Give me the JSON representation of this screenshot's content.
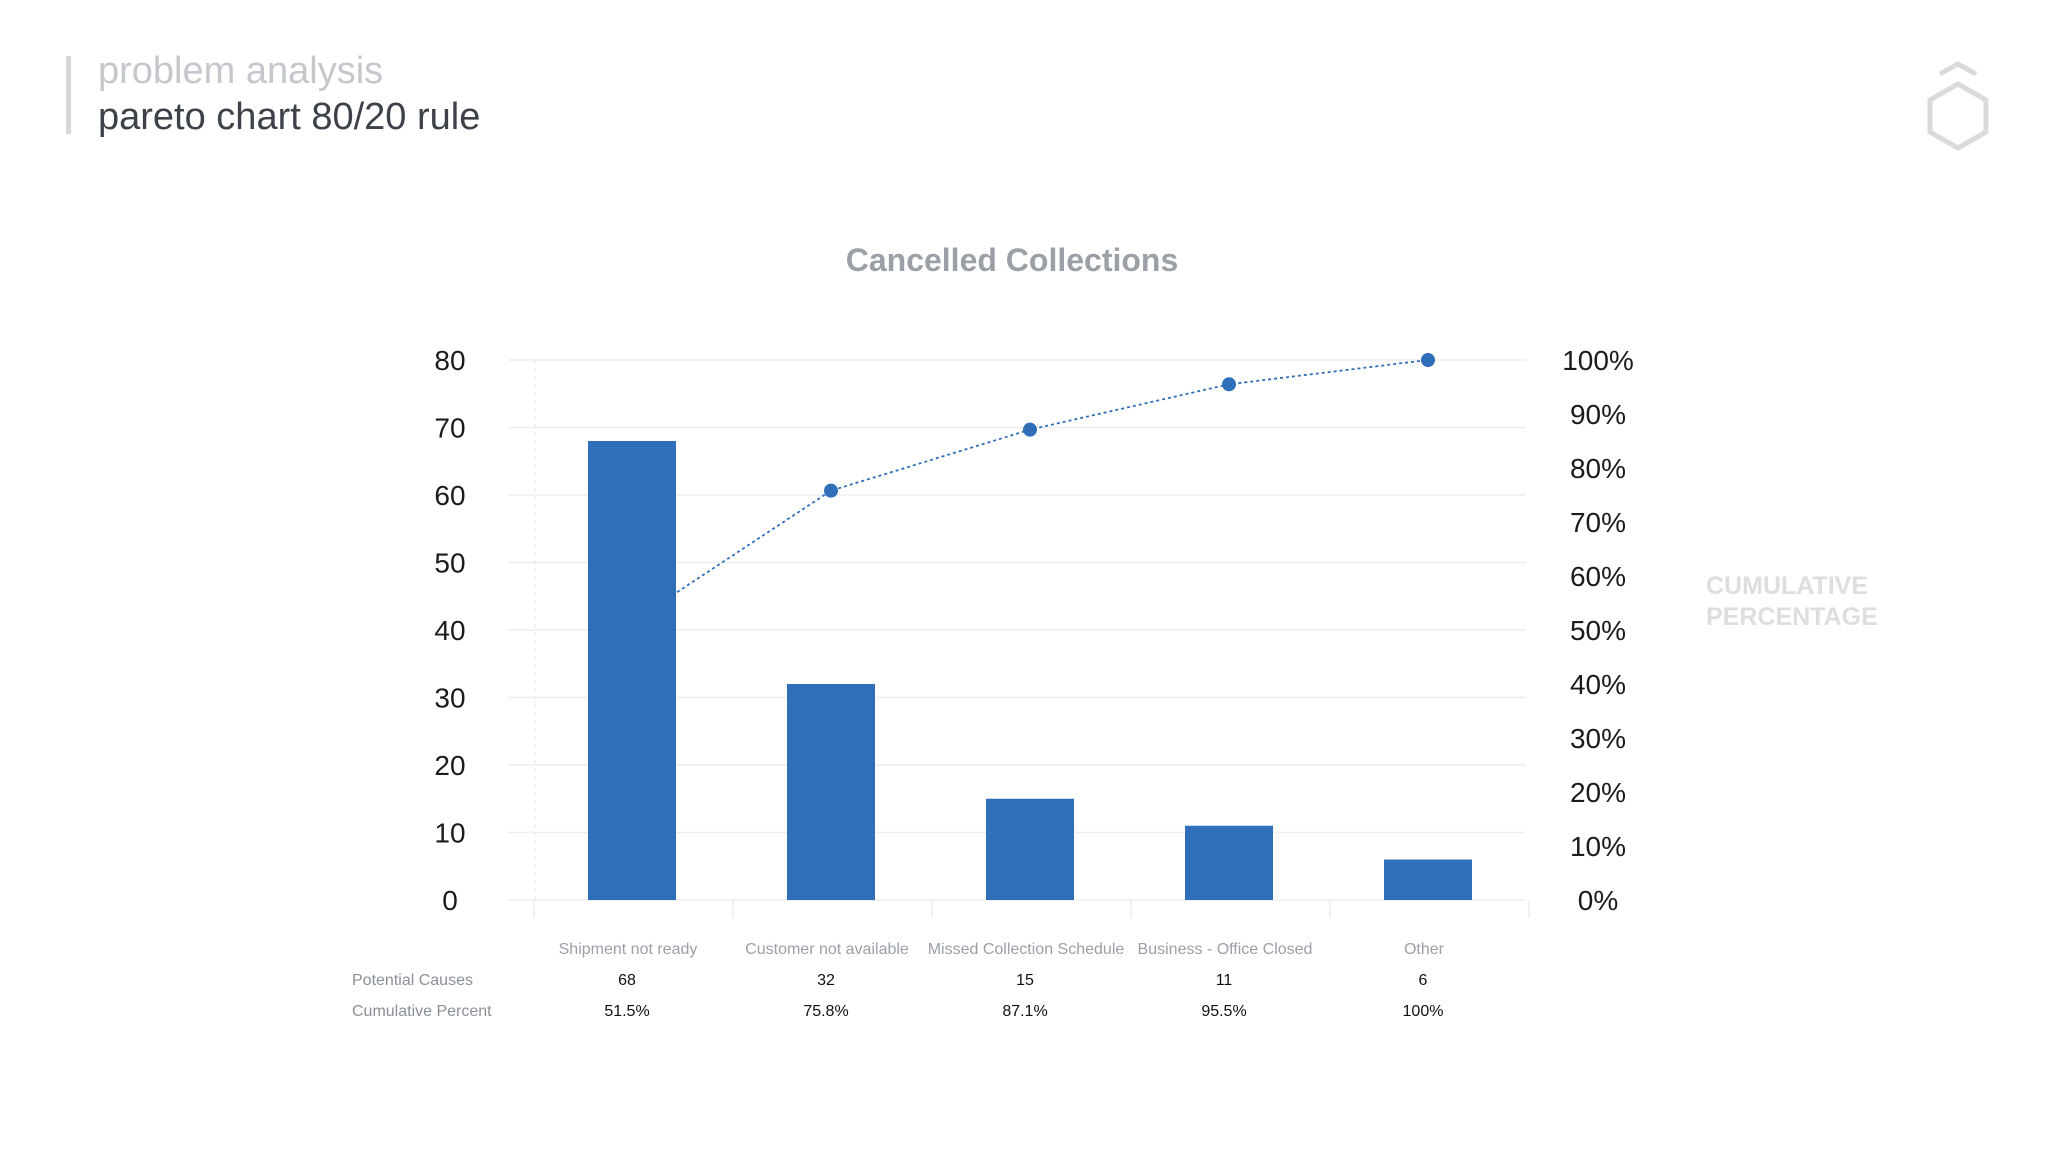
{
  "header": {
    "line1": "problem analysis",
    "line2": "pareto chart 80/20 rule"
  },
  "logo": {
    "icon": "hexagon-logo-icon"
  },
  "chart_data": {
    "type": "bar",
    "title": "Cancelled Collections",
    "categories": [
      "Shipment not ready",
      "Customer not available",
      "Missed Collection Schedule",
      "Business  - Office Closed",
      "Other"
    ],
    "values": [
      68,
      32,
      15,
      11,
      6
    ],
    "line": {
      "label": "CUMULATIVE PERCENTAGE",
      "values": [
        51.5,
        75.8,
        87.1,
        95.5,
        100
      ],
      "style": "dotted"
    },
    "ylim": [
      0,
      80
    ],
    "yticks": [
      0,
      10,
      20,
      30,
      40,
      50,
      60,
      70,
      80
    ],
    "y2lim": [
      0,
      100
    ],
    "y2ticks": [
      "0%",
      "10%",
      "20%",
      "30%",
      "40%",
      "50%",
      "60%",
      "70%",
      "80%",
      "90%",
      "100%"
    ],
    "grid": true,
    "colors": {
      "bar": "#2f6fba",
      "line": "#2f6fba"
    },
    "table": {
      "row_labels": [
        "Potential Causes",
        "Cumulative Percent"
      ],
      "counts": [
        "68",
        "32",
        "15",
        "11",
        "6"
      ],
      "percents": [
        "51.5%",
        "75.8%",
        "87.1%",
        "95.5%",
        "100%"
      ]
    }
  }
}
